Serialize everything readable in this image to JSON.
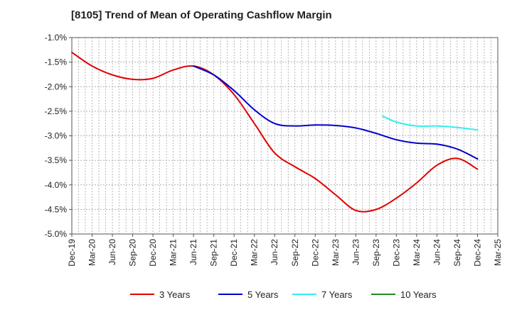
{
  "chart_data": {
    "type": "line",
    "title": "[8105]  Trend of Mean of Operating Cashflow Margin",
    "xlabel": "",
    "ylabel": "",
    "ylim": [
      -5.0,
      -1.0
    ],
    "y_ticks": [
      "-1.0%",
      "-1.5%",
      "-2.0%",
      "-2.5%",
      "-3.0%",
      "-3.5%",
      "-4.0%",
      "-4.5%",
      "-5.0%"
    ],
    "x_tick_labels": [
      "Dec-19",
      "Mar-20",
      "Jun-20",
      "Sep-20",
      "Dec-20",
      "Mar-21",
      "Jun-21",
      "Sep-21",
      "Dec-21",
      "Mar-22",
      "Jun-22",
      "Sep-22",
      "Dec-22",
      "Mar-23",
      "Jun-23",
      "Sep-23",
      "Dec-23",
      "Mar-24",
      "Jun-24",
      "Sep-24",
      "Dec-24",
      "Mar-25"
    ],
    "months_total": 63,
    "grid": true,
    "legend_position": "bottom",
    "series": [
      {
        "name": "3 Years",
        "color": "#e00000",
        "points": [
          [
            0,
            -1.3
          ],
          [
            3,
            -1.58
          ],
          [
            6,
            -1.76
          ],
          [
            9,
            -1.85
          ],
          [
            12,
            -1.83
          ],
          [
            15,
            -1.66
          ],
          [
            18,
            -1.58
          ],
          [
            21,
            -1.76
          ],
          [
            24,
            -2.16
          ],
          [
            27,
            -2.75
          ],
          [
            30,
            -3.35
          ],
          [
            33,
            -3.63
          ],
          [
            36,
            -3.87
          ],
          [
            39,
            -4.2
          ],
          [
            42,
            -4.52
          ],
          [
            45,
            -4.5
          ],
          [
            48,
            -4.27
          ],
          [
            51,
            -3.96
          ],
          [
            54,
            -3.6
          ],
          [
            57,
            -3.46
          ],
          [
            60,
            -3.68
          ]
        ]
      },
      {
        "name": "5 Years",
        "color": "#0000cc",
        "points": [
          [
            18,
            -1.58
          ],
          [
            21,
            -1.76
          ],
          [
            24,
            -2.08
          ],
          [
            27,
            -2.47
          ],
          [
            30,
            -2.75
          ],
          [
            33,
            -2.8
          ],
          [
            36,
            -2.78
          ],
          [
            39,
            -2.79
          ],
          [
            42,
            -2.84
          ],
          [
            45,
            -2.95
          ],
          [
            48,
            -3.08
          ],
          [
            51,
            -3.15
          ],
          [
            54,
            -3.17
          ],
          [
            57,
            -3.27
          ],
          [
            60,
            -3.47
          ]
        ]
      },
      {
        "name": "7 Years",
        "color": "#33eeee",
        "points": [
          [
            46,
            -2.6
          ],
          [
            48,
            -2.72
          ],
          [
            51,
            -2.8
          ],
          [
            54,
            -2.8
          ],
          [
            57,
            -2.83
          ],
          [
            60,
            -2.88
          ]
        ]
      },
      {
        "name": "10 Years",
        "color": "#228b22",
        "points": []
      }
    ]
  }
}
